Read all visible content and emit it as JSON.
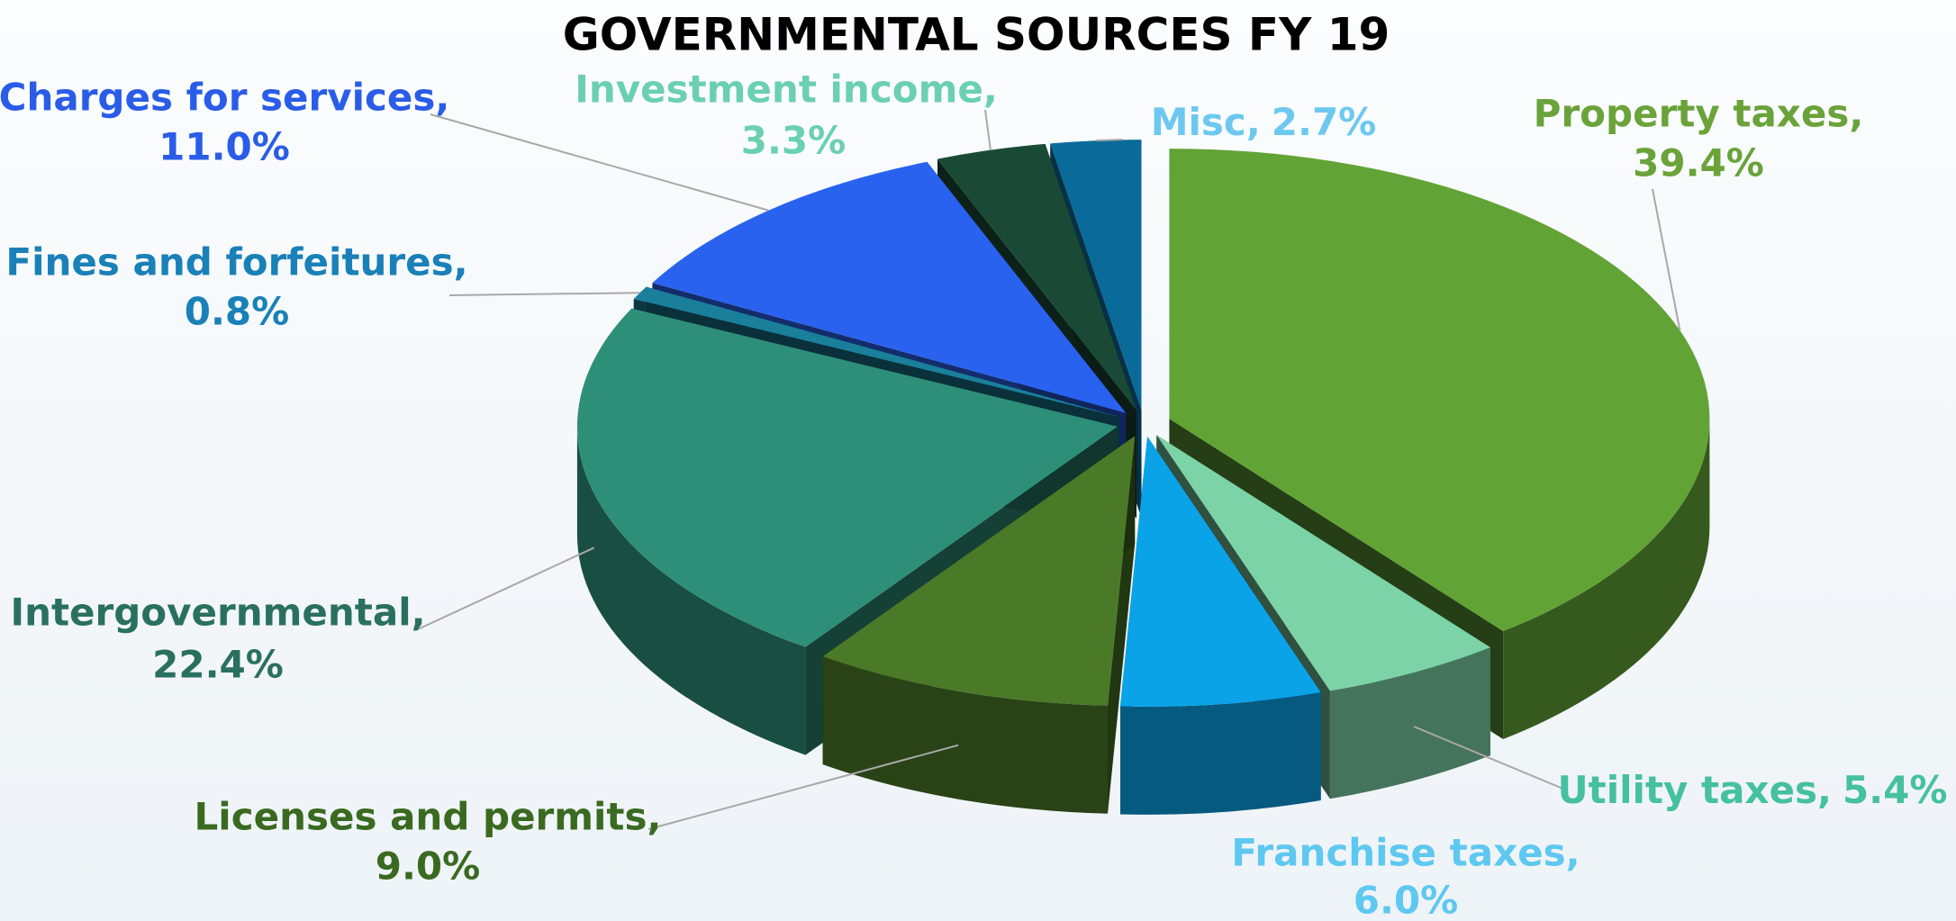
{
  "chart_data": {
    "type": "pie3d",
    "title": "GOVERNMENTAL SOURCES FY 19",
    "categories": [
      "Property taxes,",
      "Utility taxes,",
      "Franchise taxes,",
      "Licenses and permits,",
      "Intergovernmental,",
      "Fines and forfeitures,",
      "Charges for services,",
      "Investment income,",
      "Misc,"
    ],
    "values": [
      39.4,
      5.4,
      6.0,
      9.0,
      22.4,
      0.8,
      11.0,
      3.3,
      2.7
    ],
    "value_labels": [
      "39.4%",
      "5.4%",
      "6.0%",
      "9.0%",
      "22.4%",
      "0.8%",
      "11.0%",
      "3.3%",
      "2.7%"
    ],
    "colors": [
      "#62a336",
      "#7dd3a8",
      "#0aa3e8",
      "#4a7a28",
      "#2e8f78",
      "#1a7f9a",
      "#2a62f0",
      "#1a4a36",
      "#0a6a9a"
    ],
    "label_colors": [
      "#6aa33a",
      "#45c0a0",
      "#5ec8f0",
      "#3a6a20",
      "#2a7060",
      "#1a80b8",
      "#2a5ce8",
      "#6ad0b0",
      "#6cc8f0"
    ]
  }
}
